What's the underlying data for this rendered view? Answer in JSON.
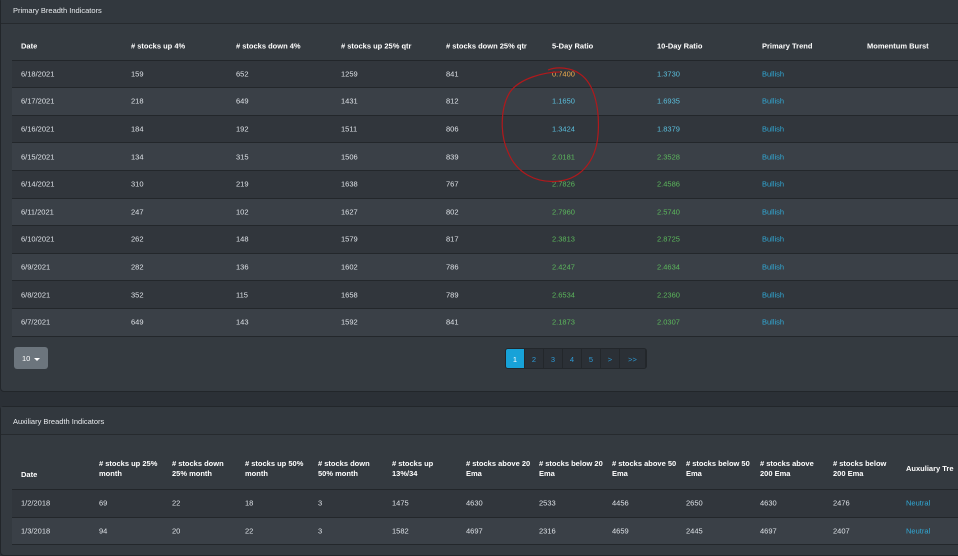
{
  "primary": {
    "title": "Primary Breadth Indicators",
    "columns": [
      "Date",
      "# stocks up 4%",
      "# stocks down 4%",
      "# stocks up 25% qtr",
      "# stocks down 25% qtr",
      "5-Day Ratio",
      "10-Day Ratio",
      "Primary Trend",
      "Momentum Burst"
    ],
    "rows": [
      {
        "date": "6/18/2021",
        "up4": "159",
        "down4": "652",
        "up25q": "1259",
        "down25q": "841",
        "r5": "0.7400",
        "r5c": "yellow",
        "r10": "1.3730",
        "r10c": "blue",
        "trend": "Bullish",
        "burst": ""
      },
      {
        "date": "6/17/2021",
        "up4": "218",
        "down4": "649",
        "up25q": "1431",
        "down25q": "812",
        "r5": "1.1650",
        "r5c": "blue",
        "r10": "1.6935",
        "r10c": "blue",
        "trend": "Bullish",
        "burst": ""
      },
      {
        "date": "6/16/2021",
        "up4": "184",
        "down4": "192",
        "up25q": "1511",
        "down25q": "806",
        "r5": "1.3424",
        "r5c": "blue",
        "r10": "1.8379",
        "r10c": "blue",
        "trend": "Bullish",
        "burst": ""
      },
      {
        "date": "6/15/2021",
        "up4": "134",
        "down4": "315",
        "up25q": "1506",
        "down25q": "839",
        "r5": "2.0181",
        "r5c": "green",
        "r10": "2.3528",
        "r10c": "green",
        "trend": "Bullish",
        "burst": ""
      },
      {
        "date": "6/14/2021",
        "up4": "310",
        "down4": "219",
        "up25q": "1638",
        "down25q": "767",
        "r5": "2.7826",
        "r5c": "green",
        "r10": "2.4586",
        "r10c": "green",
        "trend": "Bullish",
        "burst": ""
      },
      {
        "date": "6/11/2021",
        "up4": "247",
        "down4": "102",
        "up25q": "1627",
        "down25q": "802",
        "r5": "2.7960",
        "r5c": "green",
        "r10": "2.5740",
        "r10c": "green",
        "trend": "Bullish",
        "burst": ""
      },
      {
        "date": "6/10/2021",
        "up4": "262",
        "down4": "148",
        "up25q": "1579",
        "down25q": "817",
        "r5": "2.3813",
        "r5c": "green",
        "r10": "2.8725",
        "r10c": "green",
        "trend": "Bullish",
        "burst": ""
      },
      {
        "date": "6/9/2021",
        "up4": "282",
        "down4": "136",
        "up25q": "1602",
        "down25q": "786",
        "r5": "2.4247",
        "r5c": "green",
        "r10": "2.4634",
        "r10c": "green",
        "trend": "Bullish",
        "burst": ""
      },
      {
        "date": "6/8/2021",
        "up4": "352",
        "down4": "115",
        "up25q": "1658",
        "down25q": "789",
        "r5": "2.6534",
        "r5c": "green",
        "r10": "2.2360",
        "r10c": "green",
        "trend": "Bullish",
        "burst": ""
      },
      {
        "date": "6/7/2021",
        "up4": "649",
        "down4": "143",
        "up25q": "1592",
        "down25q": "841",
        "r5": "2.1873",
        "r5c": "green",
        "r10": "2.0307",
        "r10c": "green",
        "trend": "Bullish",
        "burst": ""
      }
    ],
    "page_size": "10",
    "pages": [
      "1",
      "2",
      "3",
      "4",
      "5",
      ">",
      ">>"
    ],
    "active_page": "1"
  },
  "auxiliary": {
    "title": "Auxiliary Breadth Indicators",
    "columns": [
      "Date",
      "# stocks up 25% month",
      "# stocks down 25% month",
      "# stocks up 50% month",
      "# stocks down 50% month",
      "# stocks up 13%/34",
      "# stocks above 20 Ema",
      "# stocks below 20 Ema",
      "# stocks above 50 Ema",
      "# stocks below 50 Ema",
      "# stocks above 200 Ema",
      "# stocks below 200 Ema",
      "Auxuliary Tre"
    ],
    "rows": [
      [
        "1/2/2018",
        "69",
        "22",
        "18",
        "3",
        "1475",
        "4630",
        "2533",
        "4456",
        "2650",
        "4630",
        "2476",
        "Neutral"
      ],
      [
        "1/3/2018",
        "94",
        "20",
        "22",
        "3",
        "1582",
        "4697",
        "2316",
        "4659",
        "2445",
        "4697",
        "2407",
        "Neutral"
      ]
    ]
  },
  "colors": {
    "yellow": "#f0ad4e",
    "blue": "#5bc0de",
    "green": "#5cb85c",
    "link": "#31a9d6",
    "annotation": "#b0191c"
  }
}
